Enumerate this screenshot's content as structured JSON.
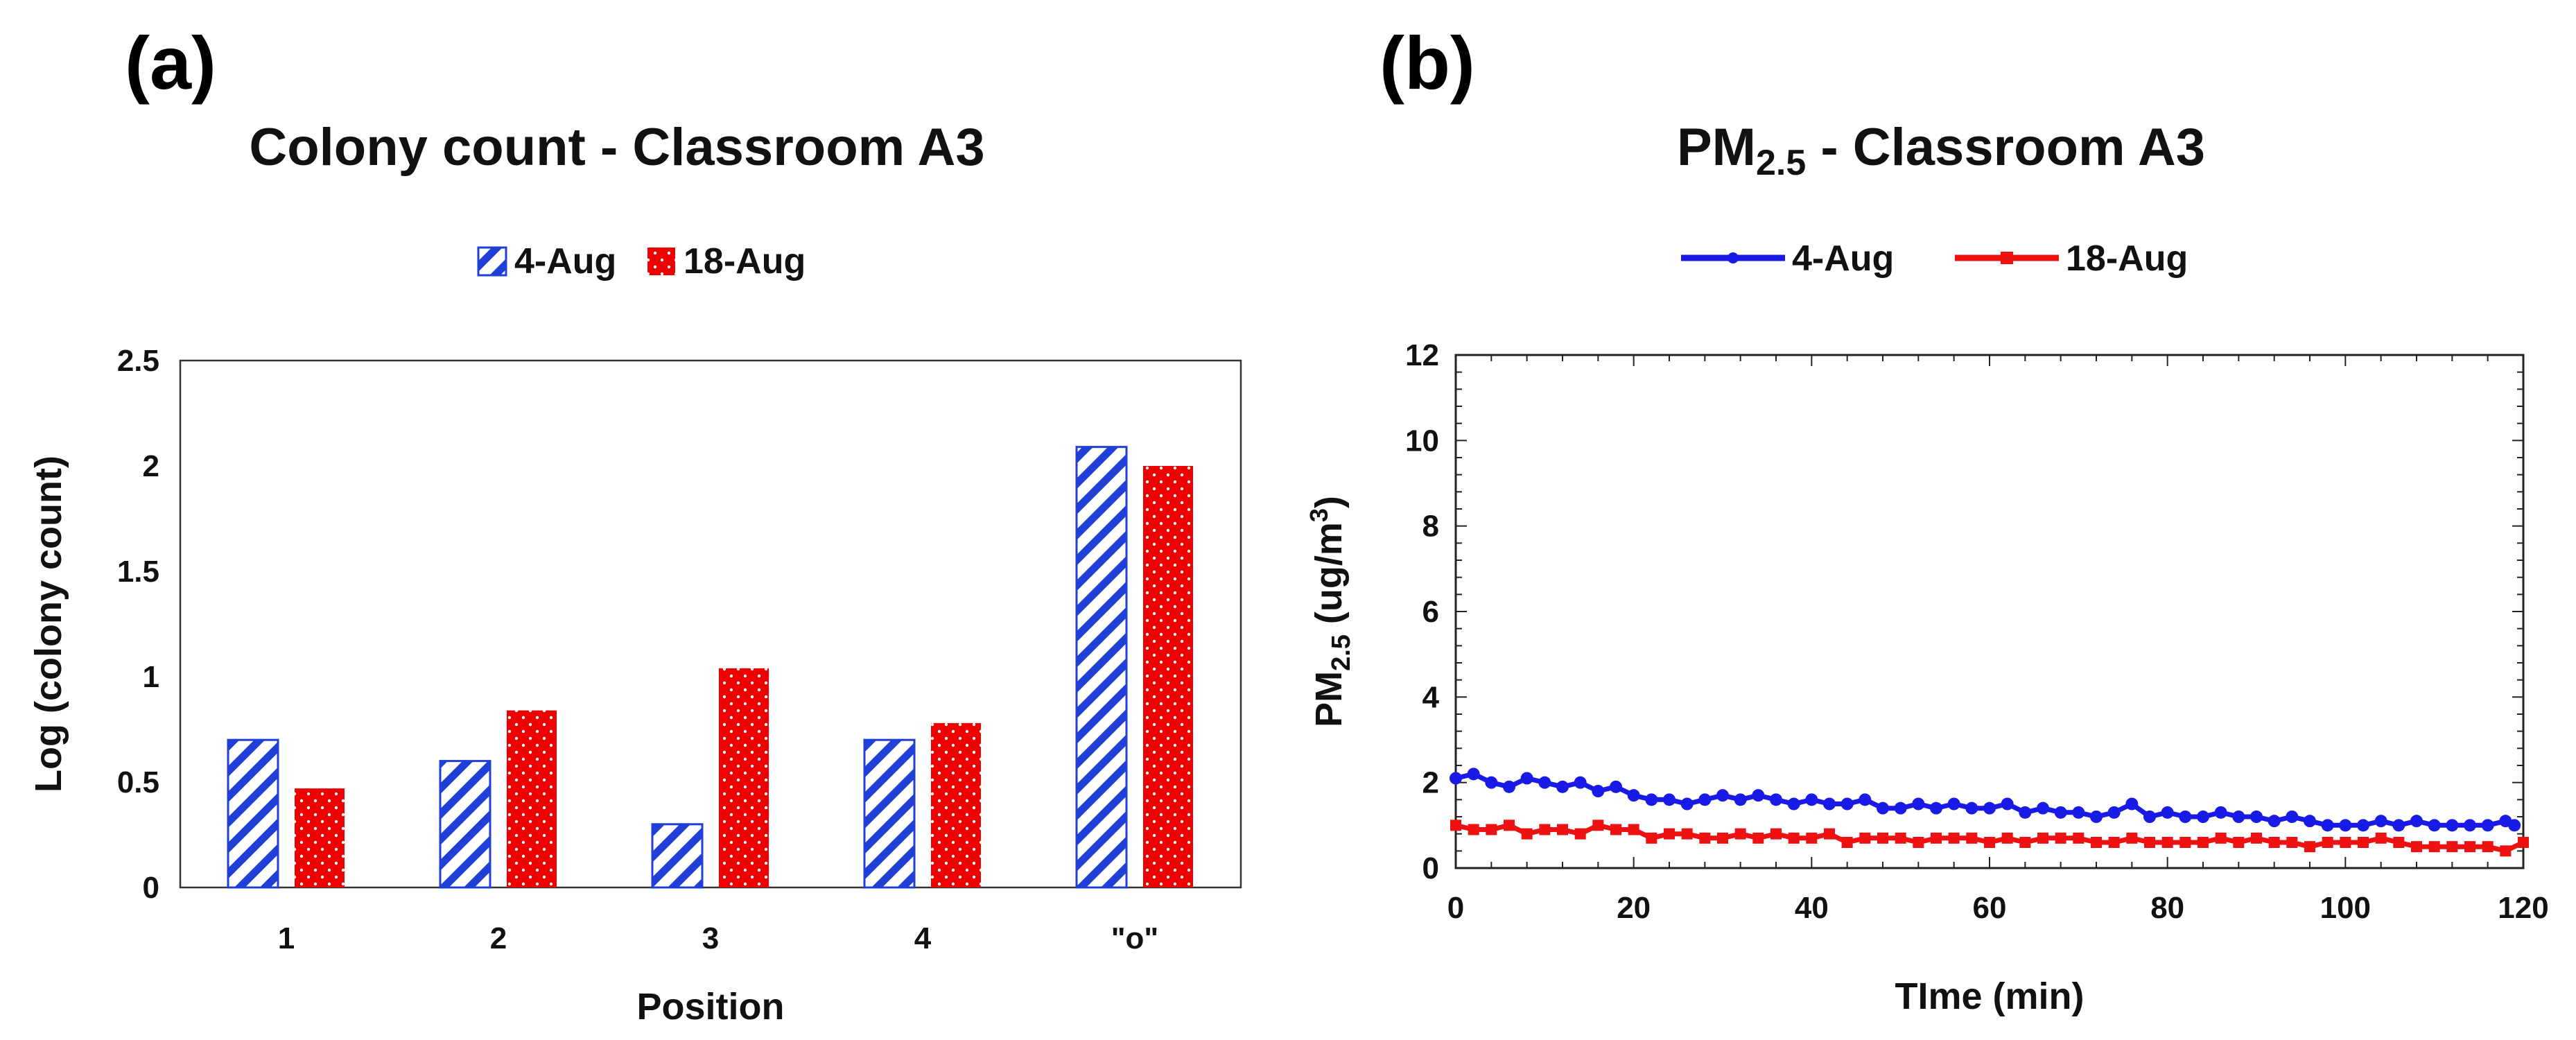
{
  "chart_data": [
    {
      "panel_label": "(a)",
      "type": "bar",
      "title": "Colony count - Classroom A3",
      "xlabel": "Position",
      "ylabel": "Log (colony count)",
      "categories": [
        "1",
        "2",
        "3",
        "4",
        "\"o\""
      ],
      "ylim": [
        0,
        2.5
      ],
      "yticks": [
        "0",
        "0.5",
        "1",
        "1.5",
        "2",
        "2.5"
      ],
      "legend_position": "top",
      "series": [
        {
          "name": "4-Aug",
          "values": [
            0.7,
            0.6,
            0.3,
            0.7,
            2.09
          ],
          "color": "#1f3fd6",
          "pattern": "diagonal-stripes"
        },
        {
          "name": "18-Aug",
          "values": [
            0.47,
            0.84,
            1.04,
            0.78,
            2.0
          ],
          "color": "#ee0000",
          "pattern": "dotted"
        }
      ]
    },
    {
      "panel_label": "(b)",
      "type": "line",
      "title": "PM",
      "title_subscript": "2.5",
      "title_suffix": " - Classroom A3",
      "xlabel": "TIme (min)",
      "ylabel_main": "PM",
      "ylabel_sub": "2.5",
      "ylabel_unit": " (ug/m",
      "ylabel_sup": "3",
      "ylabel_close": ")",
      "xlim": [
        0,
        120
      ],
      "ylim": [
        0,
        12
      ],
      "xticks": [
        "0",
        "20",
        "40",
        "60",
        "80",
        "100",
        "120"
      ],
      "yticks": [
        "0",
        "2",
        "4",
        "6",
        "8",
        "10",
        "12"
      ],
      "legend_position": "top",
      "series": [
        {
          "name": "4-Aug",
          "color": "#1a1ae6",
          "x": [
            0,
            2,
            4,
            6,
            8,
            10,
            12,
            14,
            16,
            18,
            20,
            22,
            24,
            26,
            28,
            30,
            32,
            34,
            36,
            38,
            40,
            42,
            44,
            46,
            48,
            50,
            52,
            54,
            56,
            58,
            60,
            62,
            64,
            66,
            68,
            70,
            72,
            74,
            76,
            78,
            80,
            82,
            84,
            86,
            88,
            90,
            92,
            94,
            96,
            98,
            100,
            102,
            104,
            106,
            108,
            110,
            112,
            114,
            116,
            118,
            119
          ],
          "y": [
            2.1,
            2.2,
            2.0,
            1.9,
            2.1,
            2.0,
            1.9,
            2.0,
            1.8,
            1.9,
            1.7,
            1.6,
            1.6,
            1.5,
            1.6,
            1.7,
            1.6,
            1.7,
            1.6,
            1.5,
            1.6,
            1.5,
            1.5,
            1.6,
            1.4,
            1.4,
            1.5,
            1.4,
            1.5,
            1.4,
            1.4,
            1.5,
            1.3,
            1.4,
            1.3,
            1.3,
            1.2,
            1.3,
            1.5,
            1.2,
            1.3,
            1.2,
            1.2,
            1.3,
            1.2,
            1.2,
            1.1,
            1.2,
            1.1,
            1.0,
            1.0,
            1.0,
            1.1,
            1.0,
            1.1,
            1.0,
            1.0,
            1.0,
            1.0,
            1.1,
            1.0
          ]
        },
        {
          "name": "18-Aug",
          "color": "#ee1111",
          "x": [
            0,
            2,
            4,
            6,
            8,
            10,
            12,
            14,
            16,
            18,
            20,
            22,
            24,
            26,
            28,
            30,
            32,
            34,
            36,
            38,
            40,
            42,
            44,
            46,
            48,
            50,
            52,
            54,
            56,
            58,
            60,
            62,
            64,
            66,
            68,
            70,
            72,
            74,
            76,
            78,
            80,
            82,
            84,
            86,
            88,
            90,
            92,
            94,
            96,
            98,
            100,
            102,
            104,
            106,
            108,
            110,
            112,
            114,
            116,
            118,
            120
          ],
          "y": [
            1.0,
            0.9,
            0.9,
            1.0,
            0.8,
            0.9,
            0.9,
            0.8,
            1.0,
            0.9,
            0.9,
            0.7,
            0.8,
            0.8,
            0.7,
            0.7,
            0.8,
            0.7,
            0.8,
            0.7,
            0.7,
            0.8,
            0.6,
            0.7,
            0.7,
            0.7,
            0.6,
            0.7,
            0.7,
            0.7,
            0.6,
            0.7,
            0.6,
            0.7,
            0.7,
            0.7,
            0.6,
            0.6,
            0.7,
            0.6,
            0.6,
            0.6,
            0.6,
            0.7,
            0.6,
            0.7,
            0.6,
            0.6,
            0.5,
            0.6,
            0.6,
            0.6,
            0.7,
            0.6,
            0.5,
            0.5,
            0.5,
            0.5,
            0.5,
            0.4,
            0.6
          ]
        }
      ]
    }
  ]
}
